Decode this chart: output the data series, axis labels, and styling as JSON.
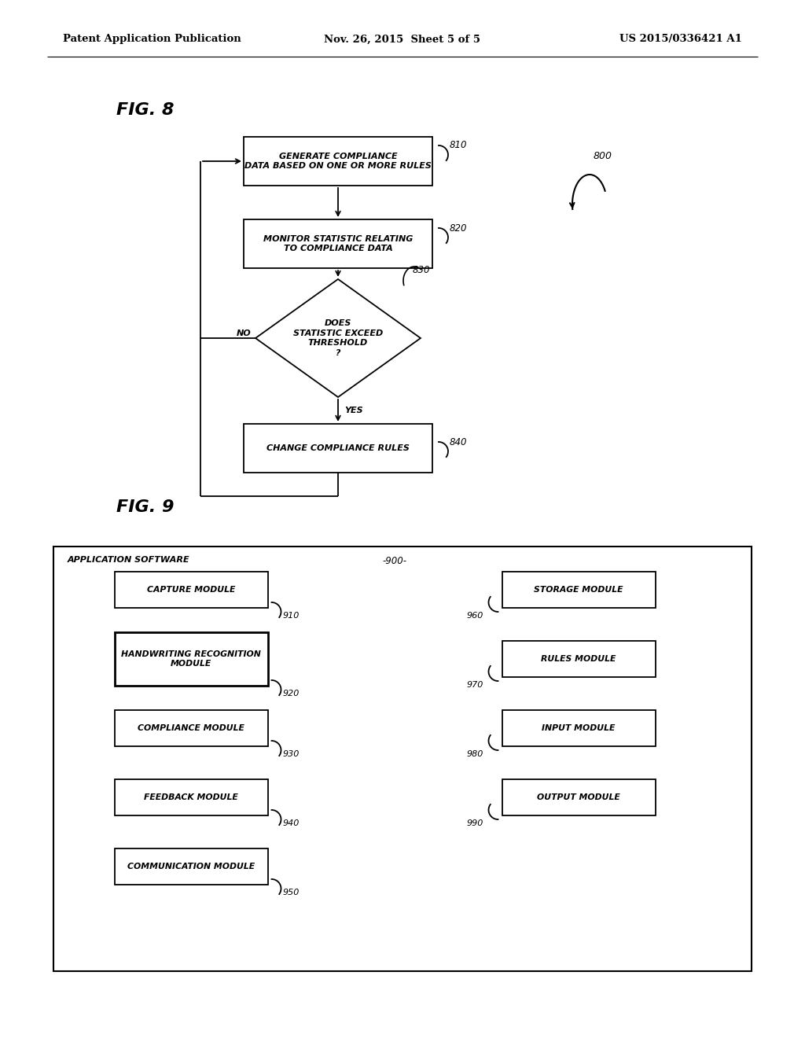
{
  "bg_color": "#ffffff",
  "header_left": "Patent Application Publication",
  "header_mid": "Nov. 26, 2015  Sheet 5 of 5",
  "header_right": "US 2015/0336421 A1",
  "fig8_label": "FIG. 8",
  "fig9_label": "FIG. 9",
  "b810_text": "GENERATE COMPLIANCE\nDATA BASED ON ONE OR MORE RULES",
  "b810_ref": "810",
  "b820_text": "MONITOR STATISTIC RELATING\nTO COMPLIANCE DATA",
  "b820_ref": "820",
  "b830_text": "DOES\nSTATISTIC EXCEED\nTHRESHOLD\n?",
  "b830_ref": "830",
  "b840_text": "CHANGE COMPLIANCE RULES",
  "b840_ref": "840",
  "b800_ref": "800",
  "yes_label": "YES",
  "no_label": "NO",
  "fig9_outer_label": "APPLICATION SOFTWARE",
  "fig9_ref": "-900-",
  "left_modules": [
    {
      "text": "CAPTURE MODULE",
      "ref": "910",
      "bold_border": false
    },
    {
      "text": "HANDWRITING RECOGNITION\nMODULE",
      "ref": "920",
      "bold_border": true
    },
    {
      "text": "COMPLIANCE MODULE",
      "ref": "930",
      "bold_border": false
    },
    {
      "text": "FEEDBACK MODULE",
      "ref": "940",
      "bold_border": false
    },
    {
      "text": "COMMUNICATION MODULE",
      "ref": "950",
      "bold_border": false
    }
  ],
  "right_modules": [
    {
      "text": "STORAGE MODULE",
      "ref": "960",
      "bold_border": false
    },
    {
      "text": "RULES MODULE",
      "ref": "970",
      "bold_border": false
    },
    {
      "text": "INPUT MODULE",
      "ref": "980",
      "bold_border": false
    },
    {
      "text": "OUTPUT MODULE",
      "ref": "990",
      "bold_border": false
    }
  ]
}
